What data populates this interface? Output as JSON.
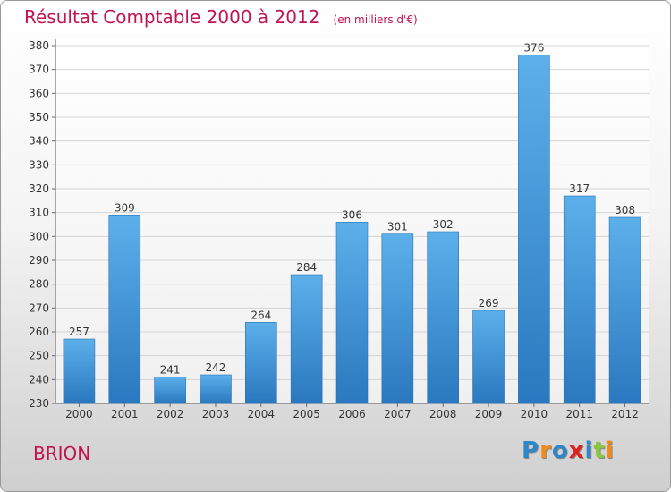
{
  "chart_data": {
    "type": "bar",
    "title": "Résultat Comptable 2000 à 2012",
    "subtitle": "(en milliers d'€)",
    "categories": [
      "2000",
      "2001",
      "2002",
      "2003",
      "2004",
      "2005",
      "2006",
      "2007",
      "2008",
      "2009",
      "2010",
      "2011",
      "2012"
    ],
    "values": [
      257,
      309,
      241,
      242,
      264,
      284,
      306,
      301,
      302,
      269,
      376,
      317,
      308
    ],
    "ylim": [
      230,
      380
    ],
    "yticks": [
      230,
      240,
      250,
      260,
      270,
      280,
      290,
      300,
      310,
      320,
      330,
      340,
      350,
      360,
      370,
      380
    ],
    "xlabel": "",
    "ylabel": "",
    "grid": true,
    "bar_color": "#4a9fdc"
  },
  "place": "BRION",
  "logo": {
    "letters": [
      "P",
      "r",
      "o",
      "x",
      "i",
      "t",
      "i"
    ],
    "colors": [
      "#2f86c8",
      "#f08a1c",
      "#2f86c8",
      "#e02020",
      "#2f86c8",
      "#8cc63f",
      "#f08a1c"
    ]
  }
}
